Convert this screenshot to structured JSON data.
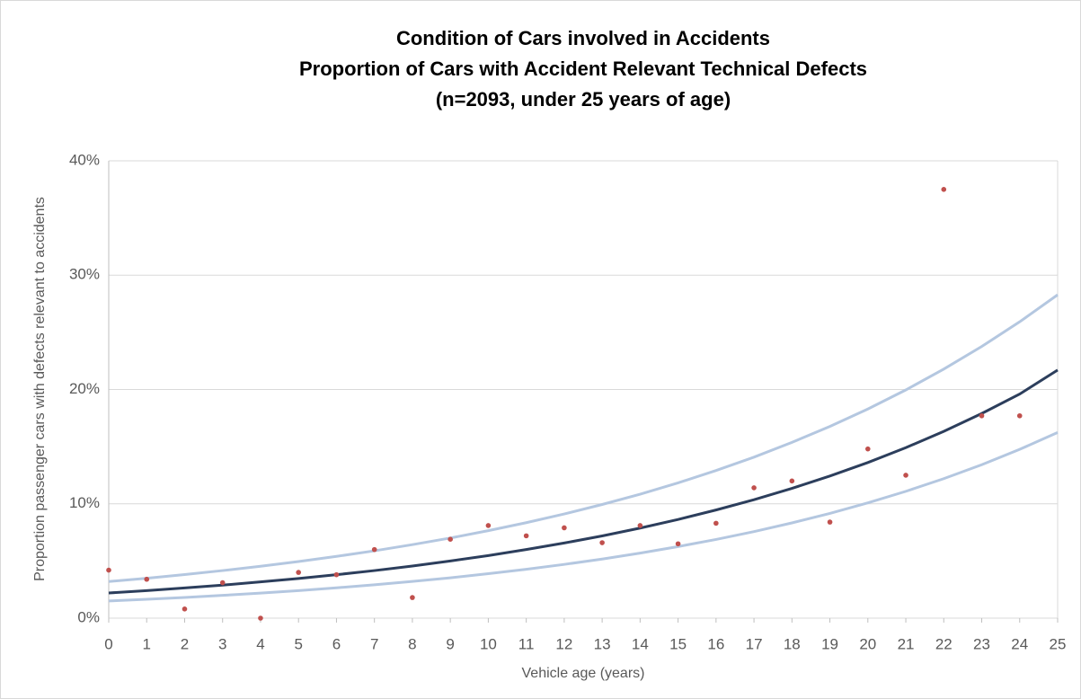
{
  "chart_data": {
    "type": "scatter",
    "title": [
      "Condition of Cars involved in Accidents",
      "Proportion of Cars with Accident Relevant Technical Defects",
      "(n=2093, under 25 years of age)"
    ],
    "x_label": "Vehicle age (years)",
    "y_label": "Proportion passenger cars with defects relevant to accidents",
    "x": [
      0,
      1,
      2,
      3,
      4,
      5,
      6,
      7,
      8,
      9,
      10,
      11,
      12,
      13,
      14,
      15,
      16,
      17,
      18,
      19,
      20,
      21,
      22,
      23,
      24,
      25
    ],
    "series": [
      {
        "type": "scatter",
        "color": "#c0504d",
        "values": [
          4.2,
          3.4,
          0.8,
          3.1,
          0,
          4.0,
          3.8,
          6.0,
          1.8,
          6.9,
          8.1,
          7.2,
          7.9,
          6.6,
          8.1,
          6.5,
          8.3,
          11.4,
          12.0,
          8.4,
          14.8,
          12.5,
          37.5,
          17.7,
          17.7,
          null
        ]
      },
      {
        "type": "line",
        "color": "#b4c7e0",
        "values": [
          3.2,
          3.49,
          3.81,
          4.16,
          4.54,
          4.95,
          5.4,
          5.89,
          6.43,
          7.01,
          7.65,
          8.35,
          9.11,
          9.94,
          10.84,
          11.83,
          12.91,
          14.08,
          15.37,
          16.77,
          18.29,
          19.96,
          21.78,
          23.76,
          25.92,
          28.28
        ]
      },
      {
        "type": "line",
        "color": "#b4c7e0",
        "values": [
          1.5,
          1.65,
          1.81,
          1.99,
          2.19,
          2.41,
          2.65,
          2.92,
          3.21,
          3.53,
          3.89,
          4.27,
          4.7,
          5.17,
          5.69,
          6.26,
          6.88,
          7.57,
          8.33,
          9.16,
          10.08,
          11.09,
          12.2,
          13.42,
          14.76,
          16.24
        ]
      },
      {
        "type": "line",
        "color": "#2c3e5c",
        "values": [
          2.2,
          2.41,
          2.64,
          2.89,
          3.17,
          3.47,
          3.8,
          4.16,
          4.56,
          5.0,
          5.47,
          6.0,
          6.57,
          7.19,
          7.88,
          8.63,
          9.46,
          10.36,
          11.35,
          12.43,
          13.61,
          14.91,
          16.34,
          17.9,
          19.6,
          21.7
        ]
      }
    ],
    "xlim": [
      0,
      25
    ],
    "xticks": [
      0,
      1,
      2,
      3,
      4,
      5,
      6,
      7,
      8,
      9,
      10,
      11,
      12,
      13,
      14,
      15,
      16,
      17,
      18,
      19,
      20,
      21,
      22,
      23,
      24,
      25
    ],
    "ylim": [
      0,
      40
    ],
    "yticks": [
      {
        "value": 0,
        "label": "0%"
      },
      {
        "value": 10,
        "label": "10%"
      },
      {
        "value": 20,
        "label": "20%"
      },
      {
        "value": 30,
        "label": "30%"
      },
      {
        "value": 40,
        "label": "40%"
      }
    ],
    "grid": true
  }
}
